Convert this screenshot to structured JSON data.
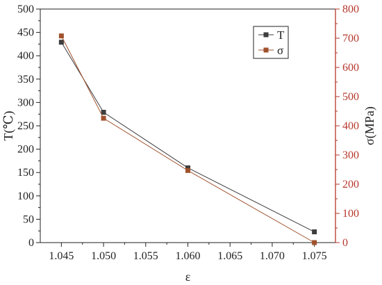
{
  "chart_data": {
    "type": "line",
    "x": [
      1.045,
      1.05,
      1.06,
      1.075
    ],
    "xlabel": "ε",
    "xlim": [
      1.0425,
      1.0775
    ],
    "xticks": [
      "1.045",
      "1.050",
      "1.055",
      "1.060",
      "1.065",
      "1.070",
      "1.075"
    ],
    "xtick_values": [
      1.045,
      1.05,
      1.055,
      1.06,
      1.065,
      1.07,
      1.075
    ],
    "series": [
      {
        "name": "T",
        "axis": "left",
        "values": [
          429,
          279,
          160,
          23
        ],
        "color": "#3d3d3d"
      },
      {
        "name": "σ",
        "axis": "right",
        "values": [
          708,
          426,
          247,
          0
        ],
        "color": "#a0522d"
      }
    ],
    "y_left": {
      "label": "T(℃)",
      "lim": [
        0,
        500
      ],
      "ticks": [
        "0",
        "50",
        "100",
        "150",
        "200",
        "250",
        "300",
        "350",
        "400",
        "450",
        "500"
      ],
      "tick_values": [
        0,
        50,
        100,
        150,
        200,
        250,
        300,
        350,
        400,
        450,
        500
      ],
      "color": "#222222"
    },
    "y_right": {
      "label": "σ(MPa)",
      "lim": [
        0,
        800
      ],
      "ticks": [
        "0",
        "100",
        "200",
        "300",
        "400",
        "500",
        "600",
        "700",
        "800"
      ],
      "tick_values": [
        0,
        100,
        200,
        300,
        400,
        500,
        600,
        700,
        800
      ],
      "color": "#b5372b"
    },
    "legend": {
      "placement": "top-right",
      "items": [
        "T",
        "σ"
      ]
    },
    "grid": false
  }
}
